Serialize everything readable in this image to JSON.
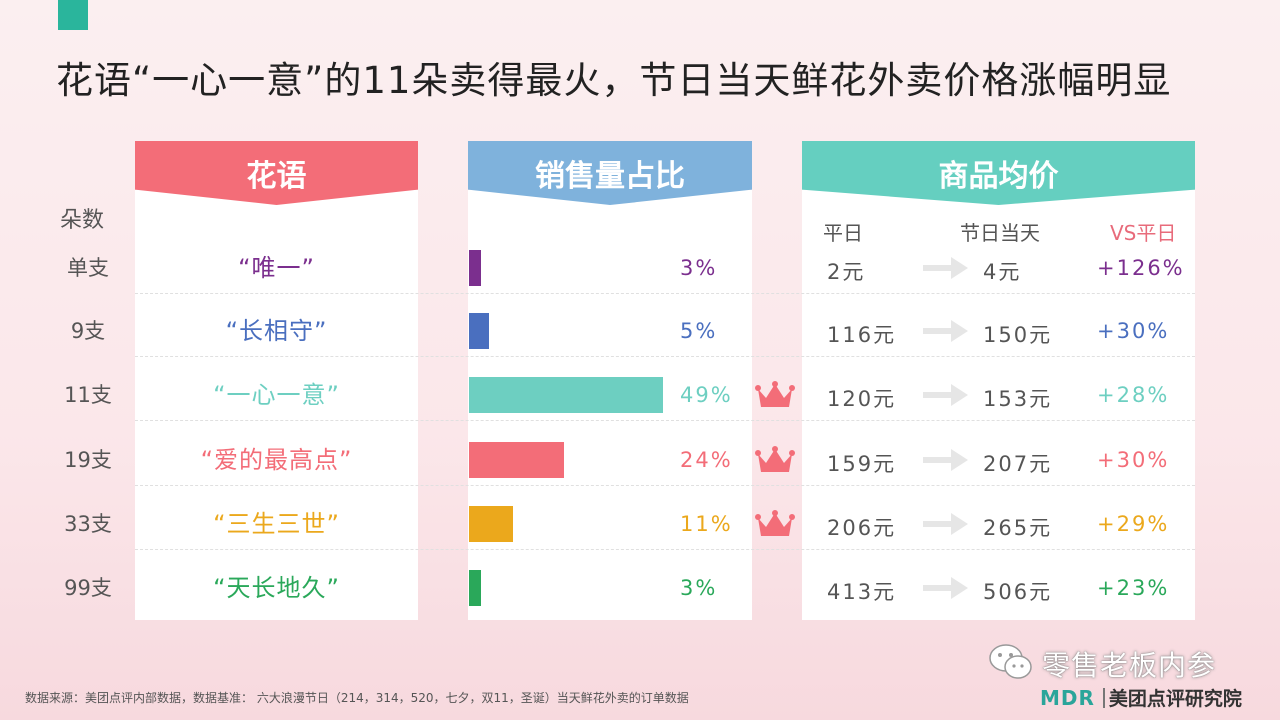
{
  "title": "花语“一心一意”的11朵卖得最火，节日当天鲜花外卖价格涨幅明显",
  "headers": {
    "flower_lang": "花语",
    "sales_share": "销售量占比",
    "avg_price": "商品均价"
  },
  "labels": {
    "count": "朵数",
    "weekday": "平日",
    "festival": "节日当天",
    "vs": "VS平日"
  },
  "colors": {
    "accent": "#2ab59c",
    "crown": "#f36d78"
  },
  "rows": [
    {
      "count": "单支",
      "name": "“唯一”",
      "share": "3%",
      "share_value": 3,
      "color": "#7b2f8e",
      "avg": "2元",
      "fest": "4元",
      "vs": "+126%",
      "crown": false
    },
    {
      "count": "9支",
      "name": "“长相守”",
      "share": "5%",
      "share_value": 5,
      "color": "#4a6fbf",
      "avg": "116元",
      "fest": "150元",
      "vs": "+30%",
      "crown": false
    },
    {
      "count": "11支",
      "name": "“一心一意”",
      "share": "49%",
      "share_value": 49,
      "color": "#6dcfc1",
      "avg": "120元",
      "fest": "153元",
      "vs": "+28%",
      "crown": true
    },
    {
      "count": "19支",
      "name": "“爱的最高点”",
      "share": "24%",
      "share_value": 24,
      "color": "#f36d78",
      "avg": "159元",
      "fest": "207元",
      "vs": "+30%",
      "crown": true
    },
    {
      "count": "33支",
      "name": "“三生三世”",
      "share": "11%",
      "share_value": 11,
      "color": "#eba81c",
      "avg": "206元",
      "fest": "265元",
      "vs": "+29%",
      "crown": true
    },
    {
      "count": "99支",
      "name": "“天长地久”",
      "share": "3%",
      "share_value": 3,
      "color": "#2aa85a",
      "avg": "413元",
      "fest": "506元",
      "vs": "+23%",
      "crown": false
    }
  ],
  "footer": "数据来源：美团点评内部数据，数据基准： 六大浪漫节日（214，314，520，七夕，双11，圣诞）当天鲜花外卖的订单数据",
  "wechat": "零售老板内参",
  "logo": {
    "mark": "MDR",
    "text": "美团点评研究院"
  }
}
